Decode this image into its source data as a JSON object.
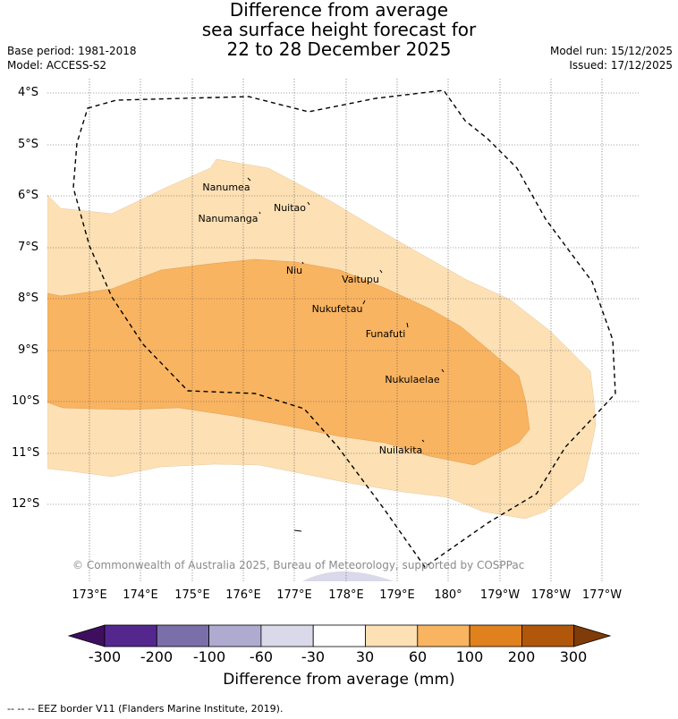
{
  "title_lines": [
    "Difference from average",
    "sea surface height forecast for",
    "22 to 28 December 2025"
  ],
  "base_period": "Base period: 1981-2018",
  "model": "Model: ACCESS-S2",
  "model_run": "Model run: 15/12/2025",
  "issued": "Issued: 17/12/2025",
  "lat_labels": [
    "4°S",
    "5°S",
    "6°S",
    "7°S",
    "8°S",
    "9°S",
    "10°S",
    "11°S",
    "12°S"
  ],
  "lon_labels": [
    "173°E",
    "174°E",
    "175°E",
    "176°E",
    "177°E",
    "178°E",
    "179°E",
    "180°",
    "179°W",
    "178°W",
    "177°W"
  ],
  "islands": [
    "Nanumea",
    "Nuitao",
    "Nanumanga",
    "Niu",
    "Vaitupu",
    "Nukufetau",
    "Funafuti",
    "Nukulaelae",
    "Nuilakita"
  ],
  "copyright": "© Commonwealth of Australia 2025, Bureau of Meteorology, supported by COSPPac",
  "colorbar": {
    "ticks": [
      "-300",
      "-200",
      "-100",
      "-60",
      "-30",
      "30",
      "60",
      "100",
      "200",
      "300"
    ],
    "colors": [
      "#54278f",
      "#7b6fa9",
      "#aeaad0",
      "#d9d9ea",
      "#ffffff",
      "#fde0b4",
      "#f9b461",
      "#e0811d",
      "#b0570b"
    ],
    "under_color": "#3f0f5f",
    "over_color": "#7f3b08",
    "label": "Difference from average (mm)"
  },
  "footnote": "--  --  -- EEZ border V11 (Flanders Marine Institute, 2019).",
  "map_colors": {
    "band_30_60": "#fde0b4",
    "band_60_100": "#f9b461",
    "band_m30_m60": "#d9d9ea"
  }
}
